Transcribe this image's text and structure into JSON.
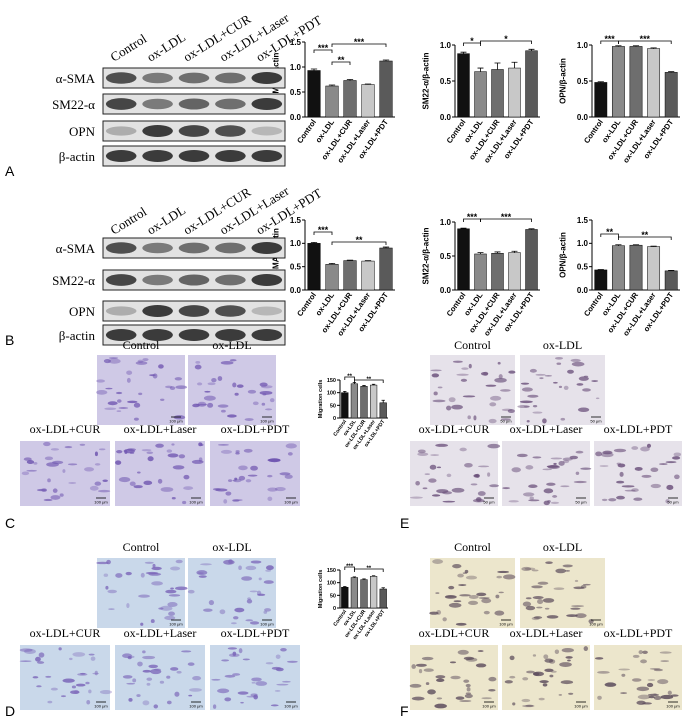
{
  "chart_data": [
    {
      "type": "bar",
      "ylabel": "α-SMA/β-actin",
      "categories": [
        "Control",
        "ox-LDL",
        "ox-LDL+CUR",
        "ox-LDL+Laser",
        "ox-LDL+PDT"
      ],
      "values": [
        0.93,
        0.62,
        0.73,
        0.65,
        1.12
      ],
      "errors": [
        0.03,
        0.02,
        0.02,
        0.01,
        0.02
      ],
      "colors": [
        "#111111",
        "#8a8a8a",
        "#6e6e6e",
        "#c8c8c8",
        "#5a5a5a"
      ],
      "ylim": [
        0,
        1.5
      ],
      "yticks": [
        {
          "value": 0,
          "label": "0.0"
        },
        {
          "value": 0.5,
          "label": "0.5"
        },
        {
          "value": 1,
          "label": "1.0"
        },
        {
          "value": 1.5,
          "label": "1.5"
        }
      ],
      "annotations": [
        "***",
        "**",
        "***"
      ]
    },
    {
      "type": "bar",
      "ylabel": "SM22-α/β-actin",
      "categories": [
        "Control",
        "ox-LDL",
        "ox-LDL+CUR",
        "ox-LDL+Laser",
        "ox-LDL+PDT"
      ],
      "values": [
        0.88,
        0.63,
        0.66,
        0.68,
        0.92
      ],
      "errors": [
        0.02,
        0.05,
        0.09,
        0.08,
        0.02
      ],
      "colors": [
        "#111111",
        "#8a8a8a",
        "#6e6e6e",
        "#c8c8c8",
        "#5a5a5a"
      ],
      "ylim": [
        0,
        1
      ],
      "yticks": [
        {
          "value": 0,
          "label": "0.0"
        },
        {
          "value": 0.5,
          "label": "0.5"
        },
        {
          "value": 1,
          "label": "1.0"
        }
      ],
      "annotations": [
        "*",
        "*"
      ]
    },
    {
      "type": "bar",
      "ylabel": "OPN/β-actin",
      "categories": [
        "Control",
        "ox-LDL",
        "ox-LDL+CUR",
        "ox-LDL+Laser",
        "ox-LDL+PDT"
      ],
      "values": [
        0.48,
        0.98,
        0.98,
        0.95,
        0.62
      ],
      "errors": [
        0.01,
        0.01,
        0.01,
        0.01,
        0.01
      ],
      "colors": [
        "#111111",
        "#8a8a8a",
        "#6e6e6e",
        "#c8c8c8",
        "#5a5a5a"
      ],
      "ylim": [
        0,
        1
      ],
      "yticks": [
        {
          "value": 0,
          "label": "0.0"
        },
        {
          "value": 0.5,
          "label": "0.5"
        },
        {
          "value": 1,
          "label": "1.0"
        }
      ],
      "annotations": [
        "***",
        "***"
      ]
    },
    {
      "type": "bar",
      "ylabel": "α-SMA/β-actin",
      "categories": [
        "Control",
        "ox-LDL",
        "ox-LDL+CUR",
        "ox-LDL+Laser",
        "ox-LDL+PDT"
      ],
      "values": [
        1.0,
        0.55,
        0.63,
        0.62,
        0.9
      ],
      "errors": [
        0.02,
        0.02,
        0.01,
        0.01,
        0.02
      ],
      "colors": [
        "#111111",
        "#8a8a8a",
        "#6e6e6e",
        "#c8c8c8",
        "#5a5a5a"
      ],
      "ylim": [
        0,
        1.5
      ],
      "yticks": [
        {
          "value": 0,
          "label": "0.0"
        },
        {
          "value": 0.5,
          "label": "0.5"
        },
        {
          "value": 1,
          "label": "1.0"
        },
        {
          "value": 1.5,
          "label": "1.5"
        }
      ],
      "annotations": [
        "***",
        "**"
      ]
    },
    {
      "type": "bar",
      "ylabel": "SM22-α/β-actin",
      "categories": [
        "Control",
        "ox-LDL",
        "ox-LDL+CUR",
        "ox-LDL+Laser",
        "ox-LDL+PDT"
      ],
      "values": [
        0.9,
        0.53,
        0.54,
        0.55,
        0.89
      ],
      "errors": [
        0.01,
        0.02,
        0.02,
        0.02,
        0.01
      ],
      "colors": [
        "#111111",
        "#8a8a8a",
        "#6e6e6e",
        "#c8c8c8",
        "#5a5a5a"
      ],
      "ylim": [
        0,
        1
      ],
      "yticks": [
        {
          "value": 0,
          "label": "0.0"
        },
        {
          "value": 0.5,
          "label": "0.5"
        },
        {
          "value": 1,
          "label": "1.0"
        }
      ],
      "annotations": [
        "***",
        "***"
      ]
    },
    {
      "type": "bar",
      "ylabel": "OPN/β-actin",
      "categories": [
        "Control",
        "ox-LDL",
        "ox-LDL+CUR",
        "ox-LDL+Laser",
        "ox-LDL+PDT"
      ],
      "values": [
        0.43,
        0.95,
        0.96,
        0.93,
        0.41
      ],
      "errors": [
        0.01,
        0.02,
        0.01,
        0.01,
        0.01
      ],
      "colors": [
        "#111111",
        "#8a8a8a",
        "#6e6e6e",
        "#c8c8c8",
        "#5a5a5a"
      ],
      "ylim": [
        0,
        1.5
      ],
      "yticks": [
        {
          "value": 0,
          "label": "0.0"
        },
        {
          "value": 0.5,
          "label": "0.5"
        },
        {
          "value": 1,
          "label": "1.0"
        },
        {
          "value": 1.5,
          "label": "1.5"
        }
      ],
      "annotations": [
        "**",
        "**"
      ]
    },
    {
      "type": "bar",
      "ylabel": "Migration cells",
      "categories": [
        "Control",
        "ox-LDL",
        "ox-LDL+CUR",
        "ox-LDL+Laser",
        "ox-LDL+PDT"
      ],
      "values": [
        100,
        135,
        125,
        130,
        60
      ],
      "errors": [
        5,
        5,
        3,
        3,
        10
      ],
      "colors": [
        "#111111",
        "#8a8a8a",
        "#6e6e6e",
        "#c8c8c8",
        "#5a5a5a"
      ],
      "ylim": [
        0,
        150
      ],
      "yticks": [
        0,
        50,
        100,
        150
      ],
      "annotations": [
        "**",
        "**"
      ]
    },
    {
      "type": "bar",
      "ylabel": "Migration cells",
      "categories": [
        "Control",
        "ox-LDL",
        "ox-LDL+CUR",
        "ox-LDL+Laser",
        "ox-LDL+PDT"
      ],
      "values": [
        82,
        120,
        112,
        125,
        75
      ],
      "errors": [
        3,
        3,
        3,
        2,
        5
      ],
      "colors": [
        "#111111",
        "#8a8a8a",
        "#6e6e6e",
        "#c8c8c8",
        "#5a5a5a"
      ],
      "ylim": [
        0,
        150
      ],
      "yticks": [
        0,
        50,
        100,
        150
      ],
      "annotations": [
        "***",
        "**"
      ]
    }
  ],
  "blots": [
    {
      "letter": "A",
      "lanes": [
        "Control",
        "ox-LDL",
        "ox-LDL+CUR",
        "ox-LDL+Laser",
        "ox-LDL+PDT"
      ],
      "rows": [
        "α-SMA",
        "SM22-α",
        "OPN",
        "β-actin"
      ]
    },
    {
      "letter": "B",
      "lanes": [
        "Control",
        "ox-LDL",
        "ox-LDL+CUR",
        "ox-LDL+Laser",
        "ox-LDL+PDT"
      ],
      "rows": [
        "α-SMA",
        "SM22-α",
        "OPN",
        "β-actin"
      ]
    }
  ],
  "micrographs": [
    {
      "letter": "C",
      "images": [
        {
          "label": "Control",
          "scale": "100 μm"
        },
        {
          "label": "ox-LDL",
          "scale": "100 μm"
        },
        {
          "label": "ox-LDL+CUR",
          "scale": "100 μm"
        },
        {
          "label": "ox-LDL+Laser",
          "scale": "100 μm"
        },
        {
          "label": "ox-LDL+PDT",
          "scale": "100 μm"
        }
      ]
    },
    {
      "letter": "D",
      "images": [
        {
          "label": "Control",
          "scale": "100 μm"
        },
        {
          "label": "ox-LDL",
          "scale": "100 μm"
        },
        {
          "label": "ox-LDL+CUR",
          "scale": "100 μm"
        },
        {
          "label": "ox-LDL+Laser",
          "scale": "100 μm"
        },
        {
          "label": "ox-LDL+PDT",
          "scale": "100 μm"
        }
      ]
    },
    {
      "letter": "E",
      "images": [
        {
          "label": "Control",
          "scale": "50 μm"
        },
        {
          "label": "ox-LDL",
          "scale": "50 μm"
        },
        {
          "label": "ox-LDL+CUR",
          "scale": "50 μm"
        },
        {
          "label": "ox-LDL+Laser",
          "scale": "50 μm"
        },
        {
          "label": "ox-LDL+PDT",
          "scale": "50 μm"
        }
      ]
    },
    {
      "letter": "F",
      "images": [
        {
          "label": "Control",
          "scale": "100 μm"
        },
        {
          "label": "ox-LDL",
          "scale": "100 μm"
        },
        {
          "label": "ox-LDL+CUR",
          "scale": "100 μm"
        },
        {
          "label": "ox-LDL+Laser",
          "scale": "100 μm"
        },
        {
          "label": "ox-LDL+PDT",
          "scale": "100 μm"
        }
      ]
    }
  ]
}
